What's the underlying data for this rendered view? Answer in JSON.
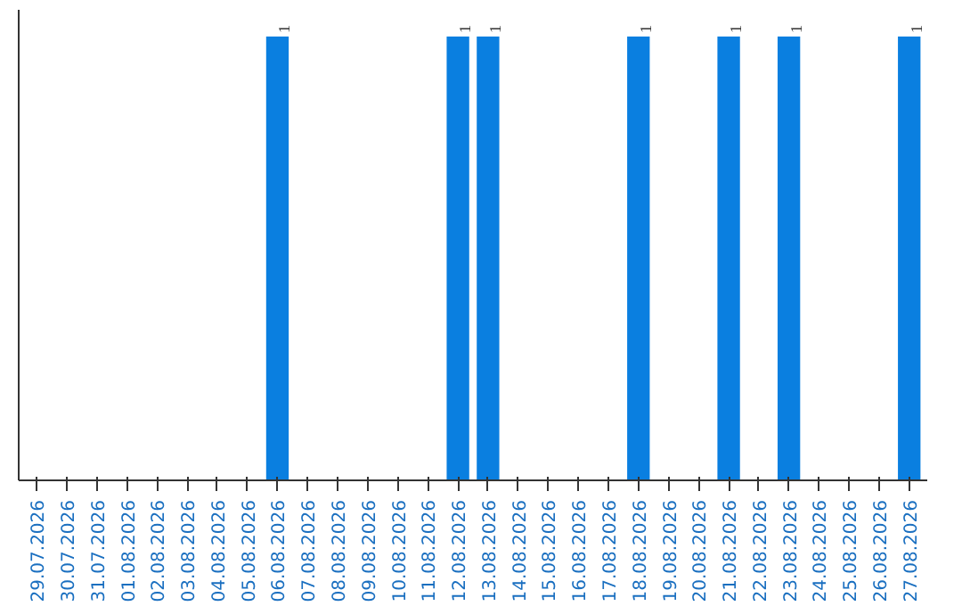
{
  "chart_data": {
    "type": "bar",
    "categories": [
      "29.07.2026",
      "30.07.2026",
      "31.07.2026",
      "01.08.2026",
      "02.08.2026",
      "03.08.2026",
      "04.08.2026",
      "05.08.2026",
      "06.08.2026",
      "07.08.2026",
      "08.08.2026",
      "09.08.2026",
      "10.08.2026",
      "11.08.2026",
      "12.08.2026",
      "13.08.2026",
      "14.08.2026",
      "15.08.2026",
      "16.08.2026",
      "17.08.2026",
      "18.08.2026",
      "19.08.2026",
      "20.08.2026",
      "21.08.2026",
      "22.08.2026",
      "23.08.2026",
      "24.08.2026",
      "25.08.2026",
      "26.08.2026",
      "27.08.2026"
    ],
    "values": [
      0,
      0,
      0,
      0,
      0,
      0,
      0,
      0,
      1,
      0,
      0,
      0,
      0,
      0,
      1,
      1,
      0,
      0,
      0,
      0,
      1,
      0,
      0,
      1,
      0,
      1,
      0,
      0,
      0,
      1
    ],
    "value_labels": [
      null,
      null,
      null,
      null,
      null,
      null,
      null,
      null,
      "1",
      null,
      null,
      null,
      null,
      null,
      "1",
      "1",
      null,
      null,
      null,
      null,
      "1",
      null,
      null,
      "1",
      null,
      "1",
      null,
      null,
      null,
      "1"
    ],
    "color": "#0a7fe0",
    "grid": false
  }
}
